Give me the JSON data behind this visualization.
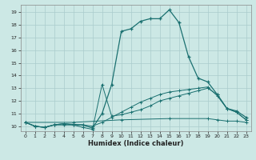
{
  "xlabel": "Humidex (Indice chaleur)",
  "bg_color": "#cce8e5",
  "grid_color": "#aacccc",
  "line_color": "#1a7070",
  "xlim": [
    -0.5,
    23.5
  ],
  "ylim": [
    9.6,
    19.6
  ],
  "xticks": [
    0,
    1,
    2,
    3,
    4,
    5,
    6,
    7,
    8,
    9,
    10,
    11,
    12,
    13,
    14,
    15,
    16,
    17,
    18,
    19,
    20,
    21,
    22,
    23
  ],
  "yticks": [
    10,
    11,
    12,
    13,
    14,
    15,
    16,
    17,
    18,
    19
  ],
  "main_series": [
    [
      0,
      10.3
    ],
    [
      1,
      10.0
    ],
    [
      2,
      9.9
    ],
    [
      3,
      10.1
    ],
    [
      4,
      10.1
    ],
    [
      5,
      10.1
    ],
    [
      6,
      10.1
    ],
    [
      7,
      9.85
    ],
    [
      8,
      11.0
    ],
    [
      9,
      13.3
    ],
    [
      10,
      17.5
    ],
    [
      11,
      17.7
    ],
    [
      12,
      18.3
    ],
    [
      13,
      18.5
    ],
    [
      14,
      18.5
    ],
    [
      15,
      19.2
    ],
    [
      16,
      18.2
    ],
    [
      17,
      15.5
    ],
    [
      18,
      13.8
    ],
    [
      19,
      13.5
    ],
    [
      20,
      12.5
    ],
    [
      21,
      11.4
    ],
    [
      22,
      11.2
    ],
    [
      23,
      10.7
    ]
  ],
  "series_spike": [
    [
      0,
      10.3
    ],
    [
      1,
      10.0
    ],
    [
      2,
      9.9
    ],
    [
      3,
      10.1
    ],
    [
      4,
      10.2
    ],
    [
      5,
      10.1
    ],
    [
      6,
      9.9
    ],
    [
      7,
      9.75
    ],
    [
      8,
      13.3
    ],
    [
      9,
      10.8
    ],
    [
      10,
      10.9
    ],
    [
      11,
      11.1
    ],
    [
      12,
      11.3
    ],
    [
      13,
      11.6
    ],
    [
      14,
      12.0
    ],
    [
      15,
      12.2
    ],
    [
      16,
      12.4
    ],
    [
      17,
      12.6
    ],
    [
      18,
      12.8
    ],
    [
      19,
      13.0
    ],
    [
      20,
      12.5
    ],
    [
      21,
      11.4
    ],
    [
      22,
      11.1
    ],
    [
      23,
      10.5
    ]
  ],
  "series_grad1": [
    [
      0,
      10.3
    ],
    [
      1,
      10.0
    ],
    [
      2,
      9.9
    ],
    [
      3,
      10.1
    ],
    [
      4,
      10.2
    ],
    [
      5,
      10.15
    ],
    [
      6,
      10.1
    ],
    [
      7,
      10.0
    ],
    [
      8,
      10.3
    ],
    [
      9,
      10.7
    ],
    [
      10,
      11.1
    ],
    [
      11,
      11.5
    ],
    [
      12,
      11.9
    ],
    [
      13,
      12.2
    ],
    [
      14,
      12.5
    ],
    [
      15,
      12.7
    ],
    [
      16,
      12.8
    ],
    [
      17,
      12.9
    ],
    [
      18,
      13.0
    ],
    [
      19,
      13.1
    ],
    [
      20,
      12.4
    ],
    [
      21,
      11.4
    ],
    [
      22,
      11.1
    ],
    [
      23,
      10.5
    ]
  ],
  "series_flat": [
    [
      0,
      10.3
    ],
    [
      5,
      10.3
    ],
    [
      10,
      10.5
    ],
    [
      15,
      10.6
    ],
    [
      19,
      10.6
    ],
    [
      20,
      10.5
    ],
    [
      21,
      10.4
    ],
    [
      22,
      10.4
    ],
    [
      23,
      10.3
    ]
  ]
}
